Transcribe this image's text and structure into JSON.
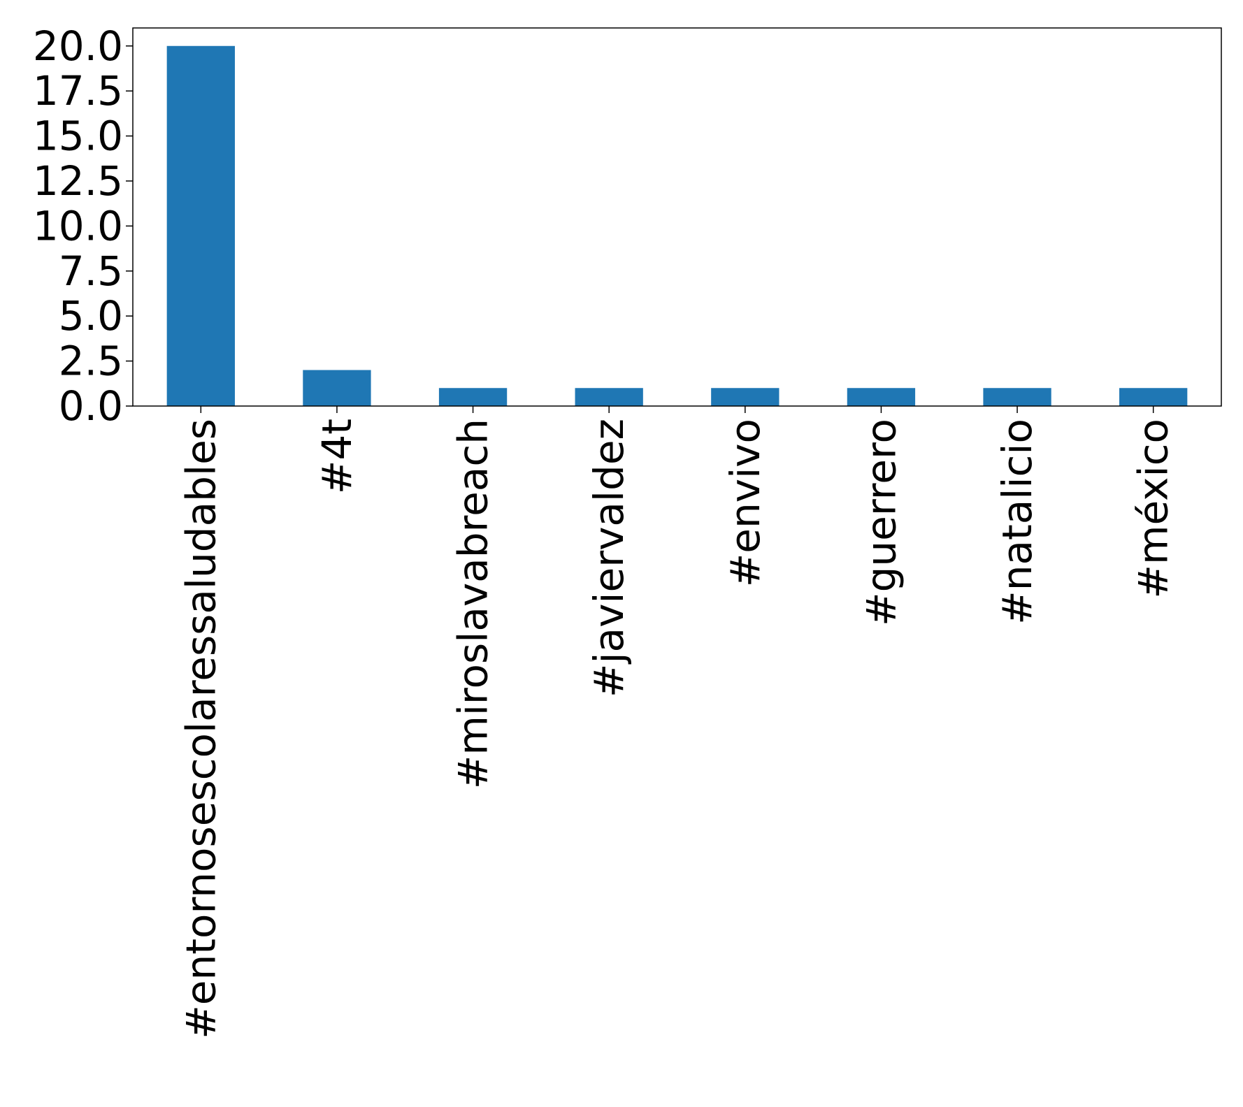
{
  "chart_data": {
    "type": "bar",
    "categories": [
      "#entornosescolaressaludables",
      "#4t",
      "#miroslavabreach",
      "#javiervaldez",
      "#envivo",
      "#guerrero",
      "#natalicio",
      "#méxico"
    ],
    "values": [
      20,
      2,
      1,
      1,
      1,
      1,
      1,
      1
    ],
    "title": "",
    "xlabel": "",
    "ylabel": "",
    "ylim": [
      0,
      21
    ],
    "yticks": [
      0,
      2.5,
      5,
      7.5,
      10,
      12.5,
      15,
      17.5,
      20
    ],
    "ytick_labels": [
      "0.0",
      "2.5",
      "5.0",
      "7.5",
      "10.0",
      "12.5",
      "15.0",
      "17.5",
      "20.0"
    ],
    "bar_color": "#1f77b4",
    "grid": false,
    "legend": "none"
  }
}
